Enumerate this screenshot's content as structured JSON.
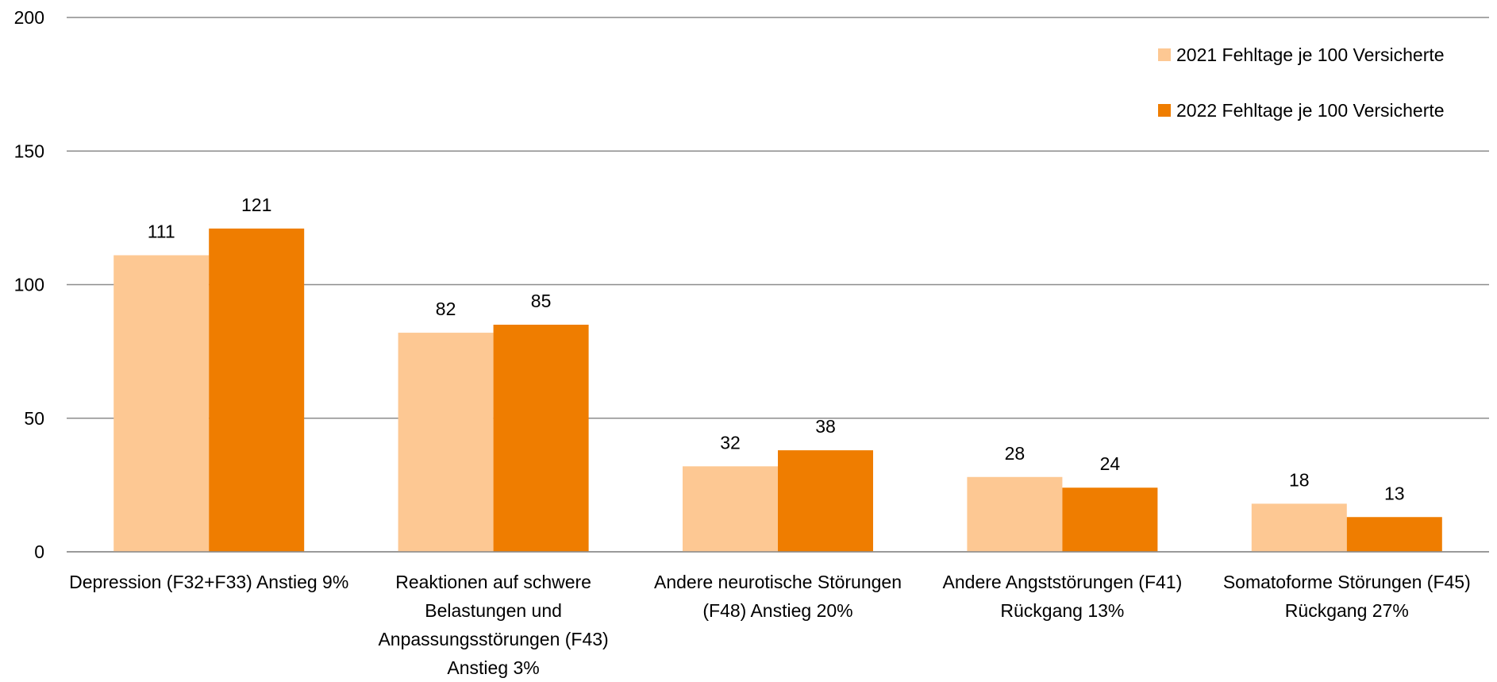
{
  "chart_data": {
    "type": "bar",
    "categories": [
      "Depression (F32+F33) Anstieg 9%",
      "Reaktionen auf schwere Belastungen und Anpassungsstörungen (F43) Anstieg 3%",
      "Andere neurotische Störungen (F48) Anstieg 20%",
      "Andere Angststörungen (F41) Rückgang 13%",
      "Somatoforme Störungen (F45) Rückgang 27%"
    ],
    "series": [
      {
        "name": "2021 Fehltage je 100 Versicherte",
        "color": "#fdc893",
        "values": [
          111,
          82,
          32,
          28,
          18
        ]
      },
      {
        "name": "2022 Fehltage je 100 Versicherte",
        "color": "#ef7d00",
        "values": [
          121,
          85,
          38,
          24,
          13
        ]
      }
    ],
    "ylim": [
      0,
      200
    ],
    "yticks": [
      0,
      50,
      100,
      150,
      200
    ],
    "grid": true,
    "legend": "upper right"
  }
}
